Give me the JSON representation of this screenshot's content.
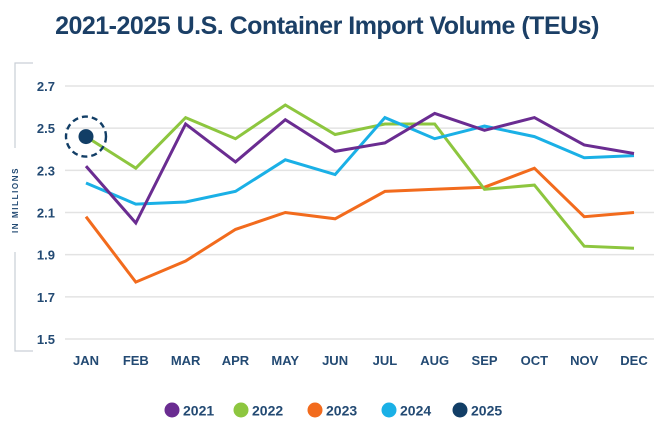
{
  "chart_data": {
    "type": "line",
    "title": "2021-2025 U.S. Container Import Volume (TEUs)",
    "xlabel": "",
    "ylabel": "IN MILLIONS",
    "ylim": [
      1.5,
      2.7
    ],
    "yticks": [
      "2.7",
      "2.5",
      "2.3",
      "2.1",
      "1.9",
      "1.7",
      "1.5"
    ],
    "ytick_values": [
      2.7,
      2.5,
      2.3,
      2.1,
      1.9,
      1.7,
      1.5
    ],
    "grid": true,
    "legend_position": "bottom",
    "categories": [
      "JAN",
      "FEB",
      "MAR",
      "APR",
      "MAY",
      "JUN",
      "JUL",
      "AUG",
      "SEP",
      "OCT",
      "NOV",
      "DEC"
    ],
    "series": [
      {
        "name": "2021",
        "color": "#6a2c91",
        "values": [
          2.32,
          2.05,
          2.52,
          2.34,
          2.54,
          2.39,
          2.43,
          2.57,
          2.49,
          2.55,
          2.42,
          2.38
        ]
      },
      {
        "name": "2022",
        "color": "#8dc63f",
        "values": [
          2.46,
          2.31,
          2.55,
          2.45,
          2.61,
          2.47,
          2.52,
          2.52,
          2.21,
          2.23,
          1.94,
          1.93
        ]
      },
      {
        "name": "2023",
        "color": "#f26b1d",
        "values": [
          2.08,
          1.77,
          1.87,
          2.02,
          2.1,
          2.07,
          2.2,
          2.21,
          2.22,
          2.31,
          2.08,
          2.1
        ]
      },
      {
        "name": "2024",
        "color": "#1ab0e6",
        "values": [
          2.24,
          2.14,
          2.15,
          2.2,
          2.35,
          2.28,
          2.55,
          2.45,
          2.51,
          2.46,
          2.36,
          2.37
        ]
      },
      {
        "name": "2025",
        "color": "#123e66",
        "values": [
          2.46,
          null,
          null,
          null,
          null,
          null,
          null,
          null,
          null,
          null,
          null,
          null
        ],
        "highlight": "dashed-circle"
      }
    ]
  }
}
